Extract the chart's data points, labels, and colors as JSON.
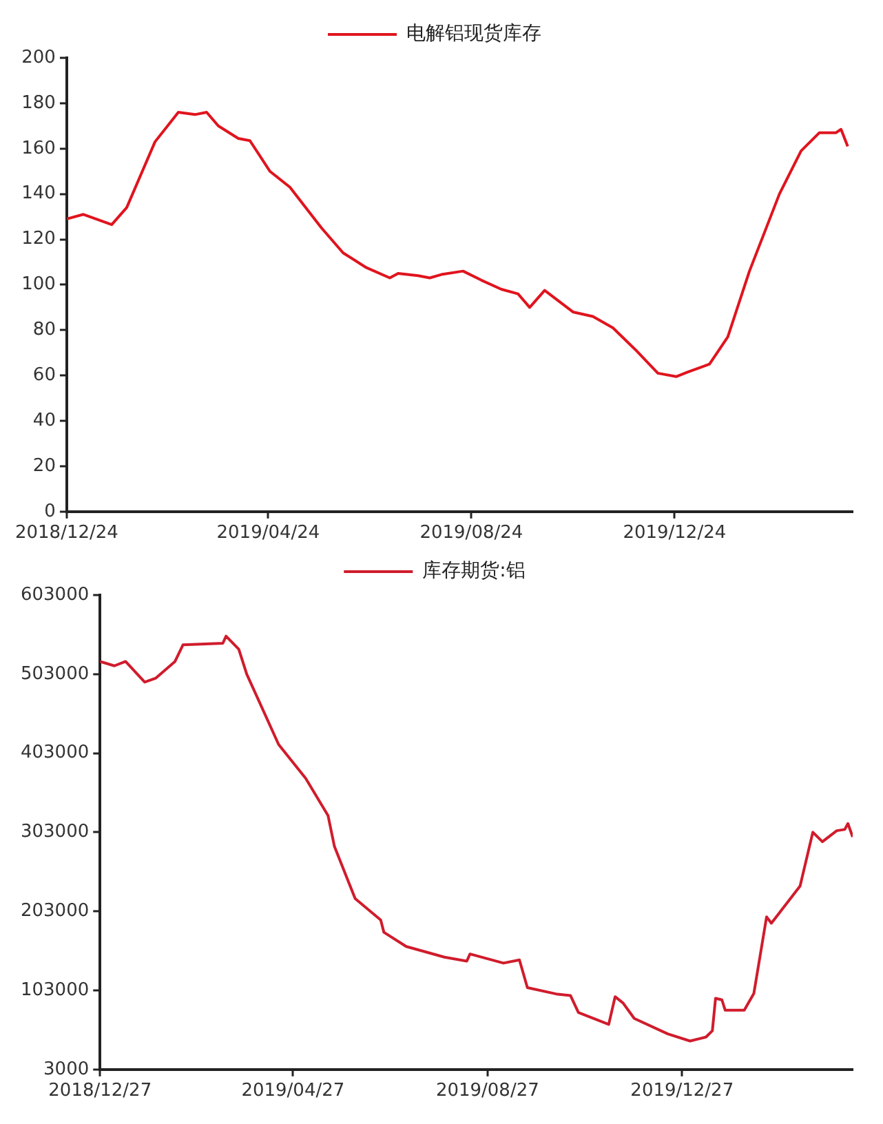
{
  "chart_data": [
    {
      "type": "line",
      "legend": "top",
      "grid": false,
      "marker": "none",
      "line_style": "solid",
      "xlim": [
        "2018-12-24",
        "2020-04-09"
      ],
      "xticks": [
        {
          "value": "2018-12-24",
          "label": "2018/12/24"
        },
        {
          "value": "2019-04-24",
          "label": "2019/04/24"
        },
        {
          "value": "2019-08-24",
          "label": "2019/08/24"
        },
        {
          "value": "2019-12-24",
          "label": "2019/12/24"
        }
      ],
      "ylim": [
        0,
        200
      ],
      "yticks": [
        0,
        20,
        40,
        60,
        80,
        100,
        120,
        140,
        160,
        180,
        200
      ],
      "series": [
        {
          "name": "电解铝现货库存",
          "color": "#e0141e",
          "x": [
            "2018-12-24",
            "2019-01-03",
            "2019-01-20",
            "2019-01-29",
            "2019-02-15",
            "2019-03-01",
            "2019-03-11",
            "2019-03-18",
            "2019-03-25",
            "2019-04-06",
            "2019-04-13",
            "2019-04-25",
            "2019-05-07",
            "2019-05-26",
            "2019-06-08",
            "2019-06-22",
            "2019-07-06",
            "2019-07-11",
            "2019-07-23",
            "2019-07-30",
            "2019-08-06",
            "2019-08-19",
            "2019-08-30",
            "2019-09-11",
            "2019-09-21",
            "2019-09-28",
            "2019-10-07",
            "2019-10-24",
            "2019-11-05",
            "2019-11-17",
            "2019-12-01",
            "2019-12-14",
            "2019-12-25",
            "2020-01-01",
            "2020-01-14",
            "2020-01-25",
            "2020-02-07",
            "2020-02-25",
            "2020-03-09",
            "2020-03-20",
            "2020-03-30",
            "2020-04-02",
            "2020-04-06"
          ],
          "values": [
            129,
            131,
            126.5,
            134,
            163,
            176,
            175,
            176,
            170,
            164.5,
            163.5,
            150,
            143,
            125,
            114,
            107.5,
            103,
            105,
            104,
            103,
            104.5,
            106,
            102,
            98,
            96,
            90,
            97.5,
            88,
            86,
            81,
            71,
            61,
            59.5,
            61.5,
            65,
            77,
            106,
            140,
            159,
            167,
            167,
            168.5,
            161
          ]
        }
      ]
    },
    {
      "type": "line",
      "legend": "top",
      "grid": false,
      "marker": "none",
      "line_style": "solid",
      "xlim": [
        "2018-12-27",
        "2020-04-12"
      ],
      "xticks": [
        {
          "value": "2018-12-27",
          "label": "2018/12/27"
        },
        {
          "value": "2019-04-27",
          "label": "2019/04/27"
        },
        {
          "value": "2019-08-27",
          "label": "2019/08/27"
        },
        {
          "value": "2019-12-27",
          "label": "2019/12/27"
        }
      ],
      "ylim": [
        3000,
        603000
      ],
      "yticks": [
        3000,
        103000,
        203000,
        303000,
        403000,
        503000,
        603000
      ],
      "series": [
        {
          "name": "库存期货:铝",
          "color": "#d01c2c",
          "x": [
            "2018-12-27",
            "2019-01-05",
            "2019-01-12",
            "2019-01-24",
            "2019-01-31",
            "2019-02-12",
            "2019-02-17",
            "2019-03-14",
            "2019-03-16",
            "2019-03-24",
            "2019-03-29",
            "2019-04-18",
            "2019-05-05",
            "2019-05-19",
            "2019-05-23",
            "2019-06-05",
            "2019-06-21",
            "2019-06-23",
            "2019-07-07",
            "2019-07-31",
            "2019-08-14",
            "2019-08-16",
            "2019-09-06",
            "2019-09-16",
            "2019-09-21",
            "2019-10-09",
            "2019-10-18",
            "2019-10-23",
            "2019-11-11",
            "2019-11-15",
            "2019-11-20",
            "2019-11-27",
            "2019-12-18",
            "2020-01-01",
            "2020-01-11",
            "2020-01-15",
            "2020-01-17",
            "2020-01-21",
            "2020-01-23",
            "2020-02-04",
            "2020-02-10",
            "2020-02-18",
            "2020-02-21",
            "2020-03-10",
            "2020-03-18",
            "2020-03-24",
            "2020-04-02",
            "2020-04-07",
            "2020-04-09",
            "2020-04-12"
          ],
          "values": [
            519000,
            513500,
            519000,
            493000,
            498000,
            519000,
            540000,
            542000,
            551000,
            534500,
            503000,
            414000,
            371000,
            324000,
            285000,
            219000,
            192000,
            176500,
            158500,
            145000,
            140000,
            149000,
            137500,
            141500,
            106500,
            98500,
            96500,
            75000,
            60000,
            95000,
            87000,
            67500,
            48000,
            39000,
            44000,
            52000,
            93000,
            91000,
            78000,
            78000,
            99000,
            196000,
            188000,
            235000,
            303000,
            291000,
            305000,
            306500,
            314000,
            297000
          ]
        }
      ]
    }
  ]
}
